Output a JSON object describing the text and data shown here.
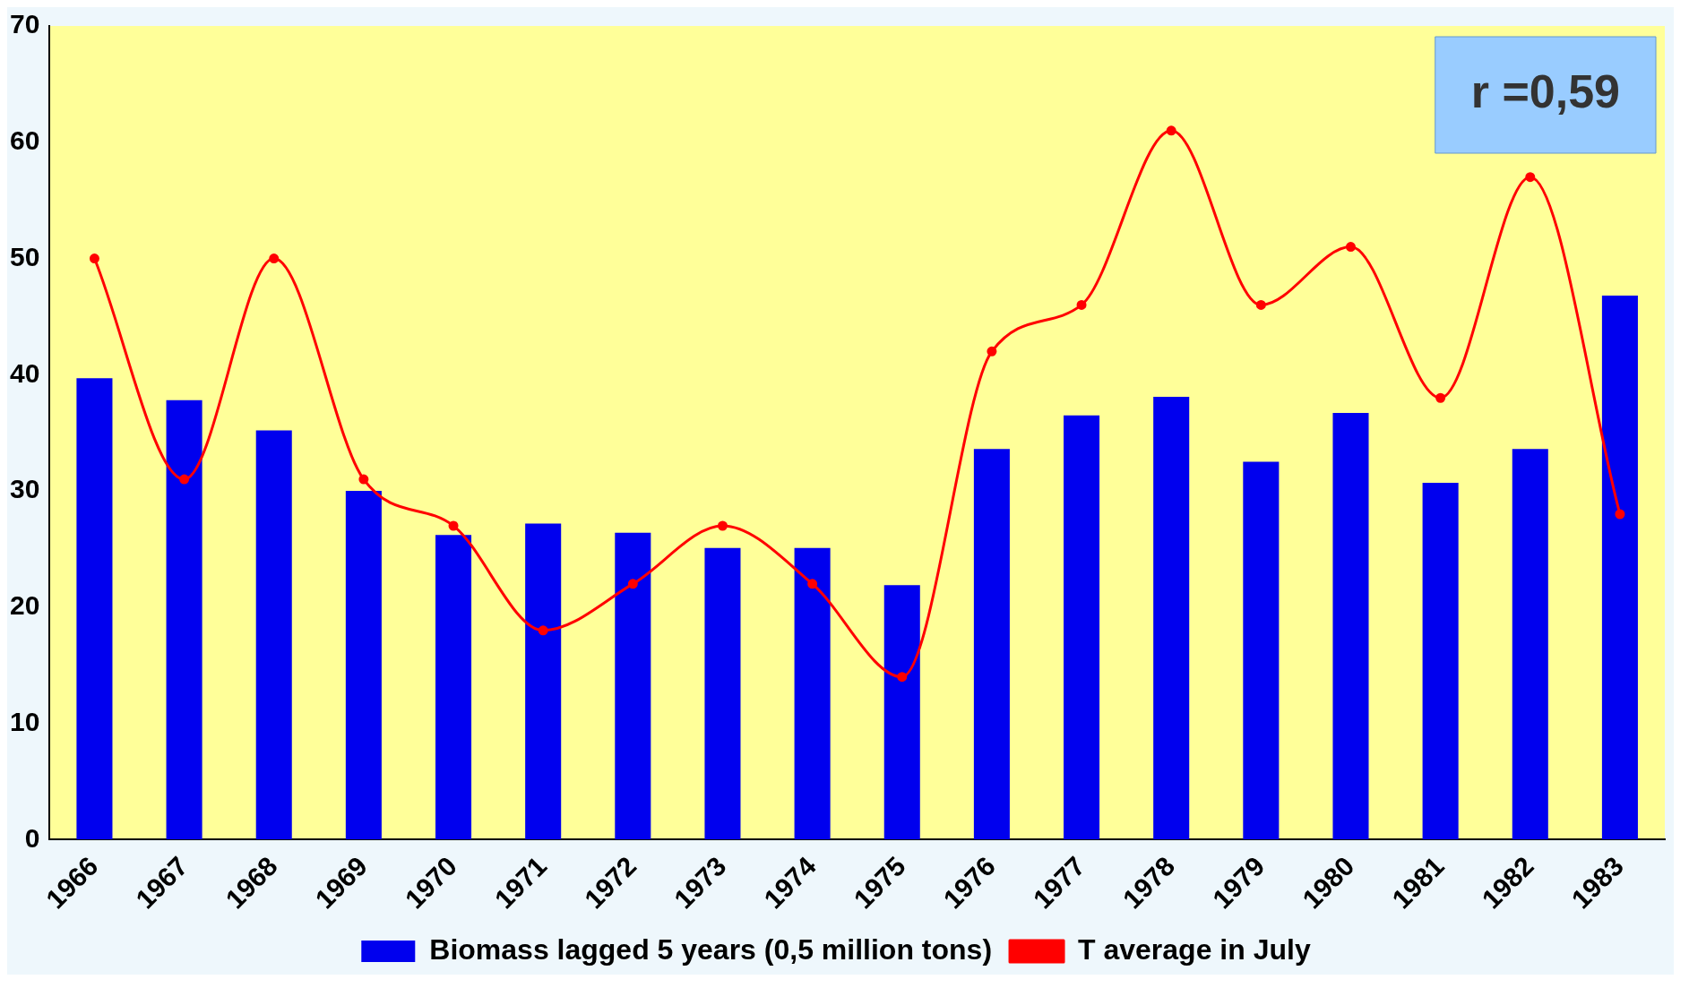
{
  "chart_data": {
    "type": "bar",
    "categories": [
      "1966",
      "1967",
      "1968",
      "1969",
      "1970",
      "1971",
      "1972",
      "1973",
      "1974",
      "1975",
      "1976",
      "1977",
      "1978",
      "1979",
      "1980",
      "1981",
      "1982",
      "1983"
    ],
    "series": [
      {
        "name": "Biomass lagged 5 years (0,5 million tons)",
        "color": "#0000ee",
        "values": [
          39.7,
          37.8,
          35.2,
          30,
          26.2,
          27.2,
          26.4,
          25.1,
          25.1,
          21.9,
          33.6,
          36.5,
          38.1,
          32.5,
          36.7,
          30.7,
          33.6,
          46.8
        ]
      },
      {
        "name": "T average in July",
        "type": "line",
        "color": "#ff0000",
        "marker": "circle",
        "values": [
          50,
          31,
          50,
          31,
          27,
          18,
          22,
          27,
          22,
          14,
          42,
          46,
          61,
          46,
          51,
          38,
          57,
          28
        ]
      }
    ],
    "ylim": [
      0,
      70
    ],
    "yticks": [
      0,
      10,
      20,
      30,
      40,
      50,
      60,
      70
    ],
    "grid": false,
    "legend": "bottom",
    "annotations": [
      "r =0,59"
    ]
  }
}
